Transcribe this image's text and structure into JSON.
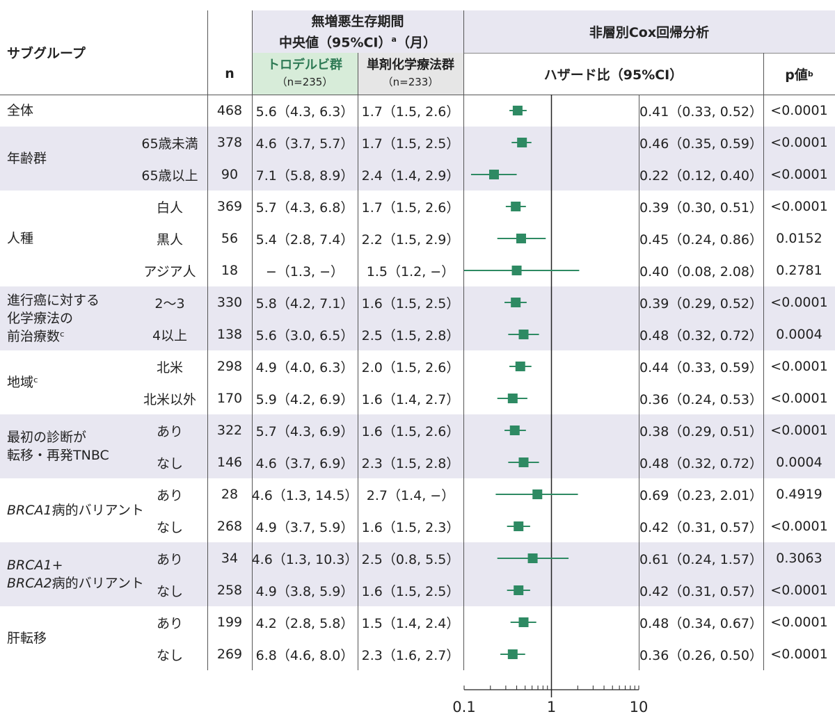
{
  "header": {
    "subgroup": "サブグループ",
    "n": "n",
    "pfs_title_1": "無増悪生存期間",
    "pfs_title_2": "中央値（95%CI）",
    "pfs_title_sup": "a",
    "pfs_title_3": "（月）",
    "arm1": "トロデルビ群",
    "arm1_n": "（n=235）",
    "arm2": "単剤化学療法群",
    "arm2_n": "（n=233）",
    "cox": "非層別Cox回帰分析",
    "hr": "ハザード比（95%CI）",
    "p": "p値",
    "p_sup": "b"
  },
  "colors": {
    "marker": "#2e8a63",
    "band": "#e8e7f1",
    "arm1_bg": "#d7ecd9",
    "arm2_bg": "#e6e6e6"
  },
  "groups": [
    {
      "label": "全体",
      "rows": [
        0
      ],
      "shaded": false
    },
    {
      "label": "年齢群",
      "rows": [
        1,
        2
      ],
      "shaded": true
    },
    {
      "label": "人種",
      "rows": [
        3,
        4,
        5
      ],
      "shaded": false
    },
    {
      "label": "進行癌に対する\n化学療法の\n前治療数ᶜ",
      "rows": [
        6,
        7
      ],
      "shaded": true
    },
    {
      "label": "地域ᶜ",
      "rows": [
        8,
        9
      ],
      "shaded": false
    },
    {
      "label": "最初の診断が\n転移・再発TNBC",
      "rows": [
        10,
        11
      ],
      "shaded": true
    },
    {
      "label": "BRCA1病的バリアント",
      "rows": [
        12,
        13
      ],
      "shaded": false
    },
    {
      "label": "BRCA1+\nBRCA2病的バリアント",
      "rows": [
        14,
        15
      ],
      "shaded": true
    },
    {
      "label": "肝転移",
      "rows": [
        16,
        17
      ],
      "shaded": false
    }
  ],
  "chart_data": {
    "type": "forest",
    "x_scale": "log",
    "xlim": [
      0.1,
      10
    ],
    "x_ticks": [
      "0.1",
      "1",
      "10"
    ],
    "reference_line": 1,
    "rows": [
      {
        "sub": "",
        "n": "468",
        "arm1": "5.6（4.3, 6.3）",
        "arm2": "1.7（1.5, 2.6）",
        "hr": 0.41,
        "lo": 0.33,
        "hi": 0.52,
        "hr_text": "0.41（0.33, 0.52）",
        "p": "<0.0001"
      },
      {
        "sub": "65歳未満",
        "n": "378",
        "arm1": "4.6（3.7, 5.7）",
        "arm2": "1.7（1.5, 2.5）",
        "hr": 0.46,
        "lo": 0.35,
        "hi": 0.59,
        "hr_text": "0.46（0.35, 0.59）",
        "p": "<0.0001"
      },
      {
        "sub": "65歳以上",
        "n": "90",
        "arm1": "7.1（5.8, 8.9）",
        "arm2": "2.4（1.4, 2.9）",
        "hr": 0.22,
        "lo": 0.12,
        "hi": 0.4,
        "hr_text": "0.22（0.12, 0.40）",
        "p": "<0.0001"
      },
      {
        "sub": "白人",
        "n": "369",
        "arm1": "5.7（4.3, 6.8）",
        "arm2": "1.7（1.5, 2.6）",
        "hr": 0.39,
        "lo": 0.3,
        "hi": 0.51,
        "hr_text": "0.39（0.30, 0.51）",
        "p": "<0.0001"
      },
      {
        "sub": "黒人",
        "n": "56",
        "arm1": "5.4（2.8, 7.4）",
        "arm2": "2.2（1.5, 2.9）",
        "hr": 0.45,
        "lo": 0.24,
        "hi": 0.86,
        "hr_text": "0.45（0.24, 0.86）",
        "p": "0.0152"
      },
      {
        "sub": "アジア人",
        "n": "18",
        "arm1": "−（1.3, −）",
        "arm2": "1.5（1.2, −）",
        "hr": 0.4,
        "lo": 0.08,
        "hi": 2.08,
        "hr_text": "0.40（0.08, 2.08）",
        "p": "0.2781"
      },
      {
        "sub": "2〜3",
        "n": "330",
        "arm1": "5.8（4.2, 7.1）",
        "arm2": "1.6（1.5, 2.5）",
        "hr": 0.39,
        "lo": 0.29,
        "hi": 0.52,
        "hr_text": "0.39（0.29, 0.52）",
        "p": "<0.0001"
      },
      {
        "sub": "4以上",
        "n": "138",
        "arm1": "5.6（3.0, 6.5）",
        "arm2": "2.5（1.5, 2.8）",
        "hr": 0.48,
        "lo": 0.32,
        "hi": 0.72,
        "hr_text": "0.48（0.32, 0.72）",
        "p": "0.0004"
      },
      {
        "sub": "北米",
        "n": "298",
        "arm1": "4.9（4.0, 6.3）",
        "arm2": "2.0（1.5, 2.6）",
        "hr": 0.44,
        "lo": 0.33,
        "hi": 0.59,
        "hr_text": "0.44（0.33, 0.59）",
        "p": "<0.0001"
      },
      {
        "sub": "北米以外",
        "n": "170",
        "arm1": "5.9（4.2, 6.9）",
        "arm2": "1.6（1.4, 2.7）",
        "hr": 0.36,
        "lo": 0.24,
        "hi": 0.53,
        "hr_text": "0.36（0.24, 0.53）",
        "p": "<0.0001"
      },
      {
        "sub": "あり",
        "n": "322",
        "arm1": "5.7（4.3, 6.9）",
        "arm2": "1.6（1.5, 2.6）",
        "hr": 0.38,
        "lo": 0.29,
        "hi": 0.51,
        "hr_text": "0.38（0.29, 0.51）",
        "p": "<0.0001"
      },
      {
        "sub": "なし",
        "n": "146",
        "arm1": "4.6（3.7, 6.9）",
        "arm2": "2.3（1.5, 2.8）",
        "hr": 0.48,
        "lo": 0.32,
        "hi": 0.72,
        "hr_text": "0.48（0.32, 0.72）",
        "p": "0.0004"
      },
      {
        "sub": "あり",
        "n": "28",
        "arm1": "4.6（1.3, 14.5）",
        "arm2": "2.7（1.4, −）",
        "hr": 0.69,
        "lo": 0.23,
        "hi": 2.01,
        "hr_text": "0.69（0.23, 2.01）",
        "p": "0.4919"
      },
      {
        "sub": "なし",
        "n": "268",
        "arm1": "4.9（3.7, 5.9）",
        "arm2": "1.6（1.5, 2.3）",
        "hr": 0.42,
        "lo": 0.31,
        "hi": 0.57,
        "hr_text": "0.42（0.31, 0.57）",
        "p": "<0.0001"
      },
      {
        "sub": "あり",
        "n": "34",
        "arm1": "4.6（1.3, 10.3）",
        "arm2": "2.5（0.8, 5.5）",
        "hr": 0.61,
        "lo": 0.24,
        "hi": 1.57,
        "hr_text": "0.61（0.24, 1.57）",
        "p": "0.3063"
      },
      {
        "sub": "なし",
        "n": "258",
        "arm1": "4.9（3.8, 5.9）",
        "arm2": "1.6（1.5, 2.5）",
        "hr": 0.42,
        "lo": 0.31,
        "hi": 0.57,
        "hr_text": "0.42（0.31, 0.57）",
        "p": "<0.0001"
      },
      {
        "sub": "あり",
        "n": "199",
        "arm1": "4.2（2.8, 5.8）",
        "arm2": "1.5（1.4, 2.4）",
        "hr": 0.48,
        "lo": 0.34,
        "hi": 0.67,
        "hr_text": "0.48（0.34, 0.67）",
        "p": "<0.0001"
      },
      {
        "sub": "なし",
        "n": "269",
        "arm1": "6.8（4.6, 8.0）",
        "arm2": "2.3（1.6, 2.7）",
        "hr": 0.36,
        "lo": 0.26,
        "hi": 0.5,
        "hr_text": "0.36（0.26, 0.50）",
        "p": "<0.0001"
      }
    ]
  }
}
